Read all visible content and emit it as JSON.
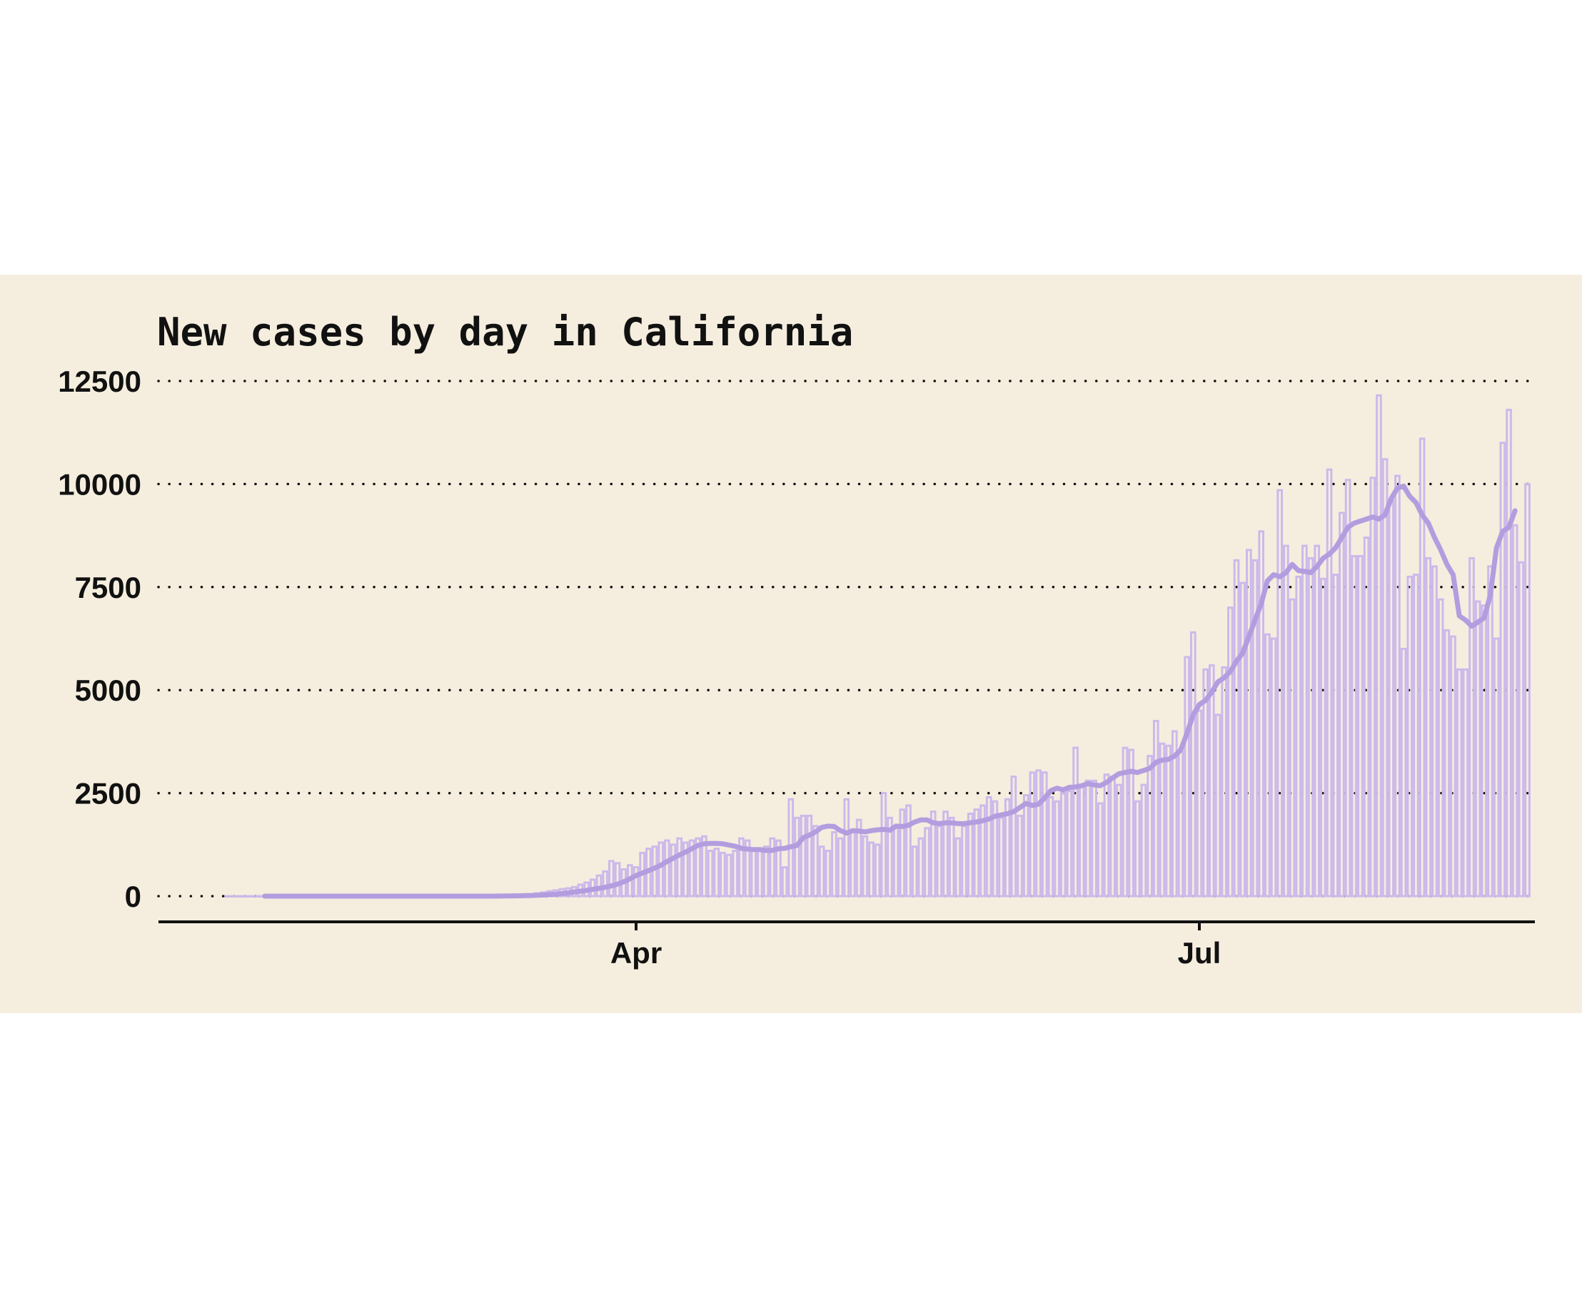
{
  "chart_data": {
    "type": "bar",
    "title": "New cases by day in California",
    "xlabel": "",
    "ylabel": "",
    "x_ticks": [
      {
        "label": "Apr",
        "date": "2020-04-01"
      },
      {
        "label": "Jul",
        "date": "2020-07-01"
      }
    ],
    "y_ticks": [
      0,
      2500,
      5000,
      7500,
      10000,
      12500
    ],
    "ylim": [
      -600,
      12500
    ],
    "grid": "horizontal-dotted",
    "legend": "none",
    "colors": {
      "background": "#f5eedf",
      "bar_stroke": "#cdb9ea",
      "average_line": "#b39ddf"
    },
    "series": [
      {
        "type": "bar",
        "start_date": "2020-01-26",
        "values": [
          0,
          0,
          0,
          0,
          0,
          0,
          0,
          0,
          0,
          0,
          0,
          0,
          0,
          0,
          0,
          0,
          0,
          0,
          0,
          0,
          0,
          0,
          0,
          0,
          0,
          0,
          0,
          0,
          0,
          0,
          0,
          0,
          0,
          0,
          0,
          0,
          0,
          0,
          0,
          0,
          3,
          5,
          10,
          12,
          15,
          20,
          25,
          30,
          40,
          50,
          70,
          90,
          120,
          140,
          170,
          190,
          220,
          280,
          330,
          400,
          500,
          600,
          850,
          800,
          650,
          750,
          700,
          1050,
          1150,
          1200,
          1300,
          1350,
          1250,
          1400,
          1300,
          1350,
          1400,
          1450,
          1100,
          1150,
          1050,
          1000,
          1100,
          1400,
          1350,
          1100,
          1150,
          1200,
          1400,
          1350,
          700,
          2350,
          1900,
          1950,
          1950,
          1700,
          1200,
          1100,
          1550,
          1400,
          2350,
          1600,
          1850,
          1450,
          1300,
          1250,
          2500,
          1900,
          1650,
          2100,
          2200,
          1200,
          1400,
          1650,
          2050,
          1700,
          2050,
          1900,
          1400,
          1700,
          2000,
          2100,
          2200,
          2400,
          2300,
          1900,
          2350,
          2900,
          1950,
          2450,
          3000,
          3050,
          3000,
          2400,
          2300,
          2500,
          2550,
          3600,
          2650,
          2800,
          2800,
          2250,
          2950,
          2900,
          2700,
          3600,
          3550,
          2300,
          2700,
          3400,
          4250,
          3700,
          3650,
          4000,
          3500,
          5800,
          6400,
          4500,
          5500,
          5600,
          4400,
          5550,
          7000,
          8150,
          7600,
          8400,
          8150,
          8850,
          6350,
          6250,
          9850,
          8500,
          7200,
          7750,
          8500,
          8200,
          8500,
          7700,
          10350,
          7800,
          9300,
          10100,
          8250,
          8250,
          8700,
          10150,
          12150,
          10600,
          9600,
          10200,
          6000,
          7750,
          7800,
          11100,
          8200,
          8000,
          7200,
          6450,
          6300,
          5500,
          5500,
          8200,
          7150,
          7050,
          8000,
          6250,
          11000,
          11800,
          9000,
          8100,
          10000
        ]
      },
      {
        "type": "line",
        "name": "",
        "start_date": "2020-02-01",
        "values": [
          0,
          0,
          0,
          0,
          0,
          0,
          0,
          0,
          0,
          0,
          0,
          0,
          0,
          0,
          0,
          0,
          0,
          0,
          0,
          0,
          0,
          0,
          0,
          0,
          0,
          0,
          0,
          0,
          0,
          0,
          0,
          0,
          0,
          0,
          0,
          0,
          0,
          0,
          2,
          4,
          6,
          9,
          12,
          16,
          22,
          28,
          36,
          46,
          60,
          78,
          100,
          120,
          140,
          165,
          190,
          215,
          250,
          290,
          350,
          420,
          500,
          560,
          620,
          680,
          750,
          840,
          920,
          1000,
          1070,
          1150,
          1230,
          1270,
          1280,
          1280,
          1270,
          1240,
          1210,
          1160,
          1140,
          1130,
          1130,
          1110,
          1110,
          1150,
          1160,
          1200,
          1230,
          1420,
          1480,
          1560,
          1670,
          1700,
          1690,
          1590,
          1530,
          1590,
          1580,
          1560,
          1590,
          1610,
          1620,
          1600,
          1700,
          1690,
          1720,
          1800,
          1850,
          1850,
          1780,
          1760,
          1780,
          1780,
          1760,
          1760,
          1780,
          1800,
          1830,
          1870,
          1940,
          1970,
          2000,
          2050,
          2150,
          2250,
          2200,
          2230,
          2380,
          2560,
          2620,
          2580,
          2640,
          2650,
          2680,
          2730,
          2700,
          2680,
          2760,
          2870,
          2970,
          3000,
          3030,
          3000,
          3050,
          3100,
          3250,
          3300,
          3320,
          3400,
          3550,
          3950,
          4400,
          4650,
          4750,
          4950,
          5200,
          5300,
          5450,
          5700,
          5900,
          6300,
          6700,
          7100,
          7650,
          7800,
          7750,
          7850,
          8050,
          7900,
          7880,
          7850,
          8000,
          8200,
          8300,
          8450,
          8700,
          8950,
          9050,
          9100,
          9150,
          9200,
          9150,
          9250,
          9650,
          9900,
          9950,
          9700,
          9550,
          9250,
          9050,
          8700,
          8400,
          8050,
          7800,
          6800,
          6700,
          6550,
          6650,
          6750,
          7300,
          8450,
          8850,
          8950,
          9350
        ]
      }
    ]
  }
}
